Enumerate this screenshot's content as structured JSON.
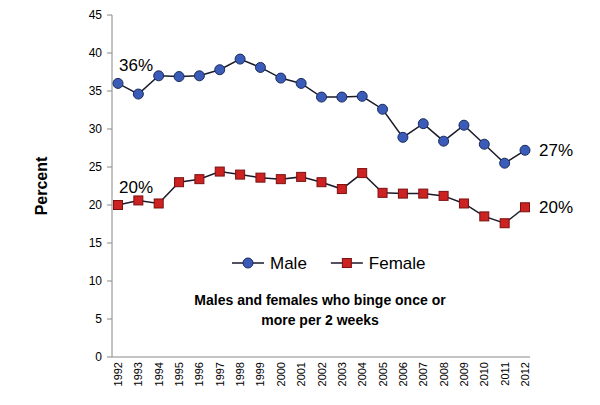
{
  "chart_data": {
    "type": "line",
    "subtitle": "Males and females who binge once or more per 2 weeks",
    "y_label": "Percent",
    "categories": [
      "1992",
      "1993",
      "1994",
      "1995",
      "1996",
      "1997",
      "1998",
      "1999",
      "2000",
      "2001",
      "2002",
      "2003",
      "2004",
      "2005",
      "2006",
      "2007",
      "2008",
      "2009",
      "2010",
      "2011",
      "2012"
    ],
    "series": [
      {
        "name": "Male",
        "color": "#3a5cb8",
        "marker": "circle",
        "values": [
          36,
          34.6,
          37,
          36.9,
          37,
          37.8,
          39.2,
          38.1,
          36.7,
          36,
          34.2,
          34.2,
          34.3,
          32.6,
          28.9,
          30.7,
          28.4,
          30.5,
          28,
          25.5,
          27.2
        ]
      },
      {
        "name": "Female",
        "color": "#cc2222",
        "marker": "square",
        "values": [
          20,
          20.6,
          20.2,
          23,
          23.4,
          24.4,
          24,
          23.6,
          23.4,
          23.7,
          23,
          22.1,
          24.2,
          21.6,
          21.5,
          21.5,
          21.2,
          20.2,
          18.5,
          17.6,
          19.7
        ]
      }
    ],
    "annotations": [
      "36%",
      "20%",
      "27%",
      "20%"
    ],
    "ylim": [
      0,
      45
    ],
    "yticks": [
      0,
      5,
      10,
      15,
      20,
      25,
      30,
      35,
      40,
      45
    ],
    "grid": false,
    "legend": "center"
  }
}
